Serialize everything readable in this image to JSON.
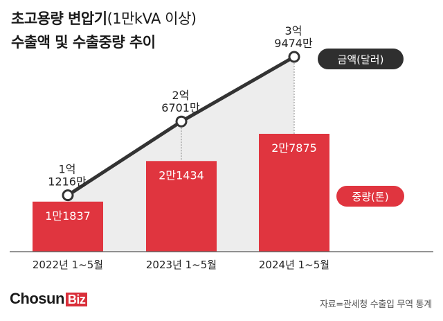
{
  "title": {
    "line1_main": "초고용량 변압기",
    "line1_sub": "(1만kVA 이상)",
    "line2": "수출액 및 수출중량 추이"
  },
  "source": "자료=관세청 수출입 무역 통계",
  "brand": {
    "main": "Chosun",
    "accent": "Biz"
  },
  "colors": {
    "bar": "#e0353f",
    "line": "#333333",
    "area": "#e6e6e6",
    "legend_amount_bg": "#2f2f2f",
    "legend_weight_bg": "#e0353f"
  },
  "chart_data": {
    "type": "bar+line",
    "categories": [
      "2022년 1~5월",
      "2023년 1~5월",
      "2024년 1~5월"
    ],
    "series": [
      {
        "name": "금액(달러)",
        "type": "line",
        "values": [
          121160000,
          267010000,
          394740000
        ],
        "labels": [
          [
            "1억",
            "1216만"
          ],
          [
            "2억",
            "6701만"
          ],
          [
            "3억",
            "9474만"
          ]
        ]
      },
      {
        "name": "중량(톤)",
        "type": "bar",
        "values": [
          11837,
          21434,
          27875
        ],
        "labels": [
          "1만1837",
          "2만1434",
          "2만7875"
        ]
      }
    ],
    "legend": [
      "금액(달러)",
      "중량(톤)"
    ],
    "legend_position": "right"
  }
}
